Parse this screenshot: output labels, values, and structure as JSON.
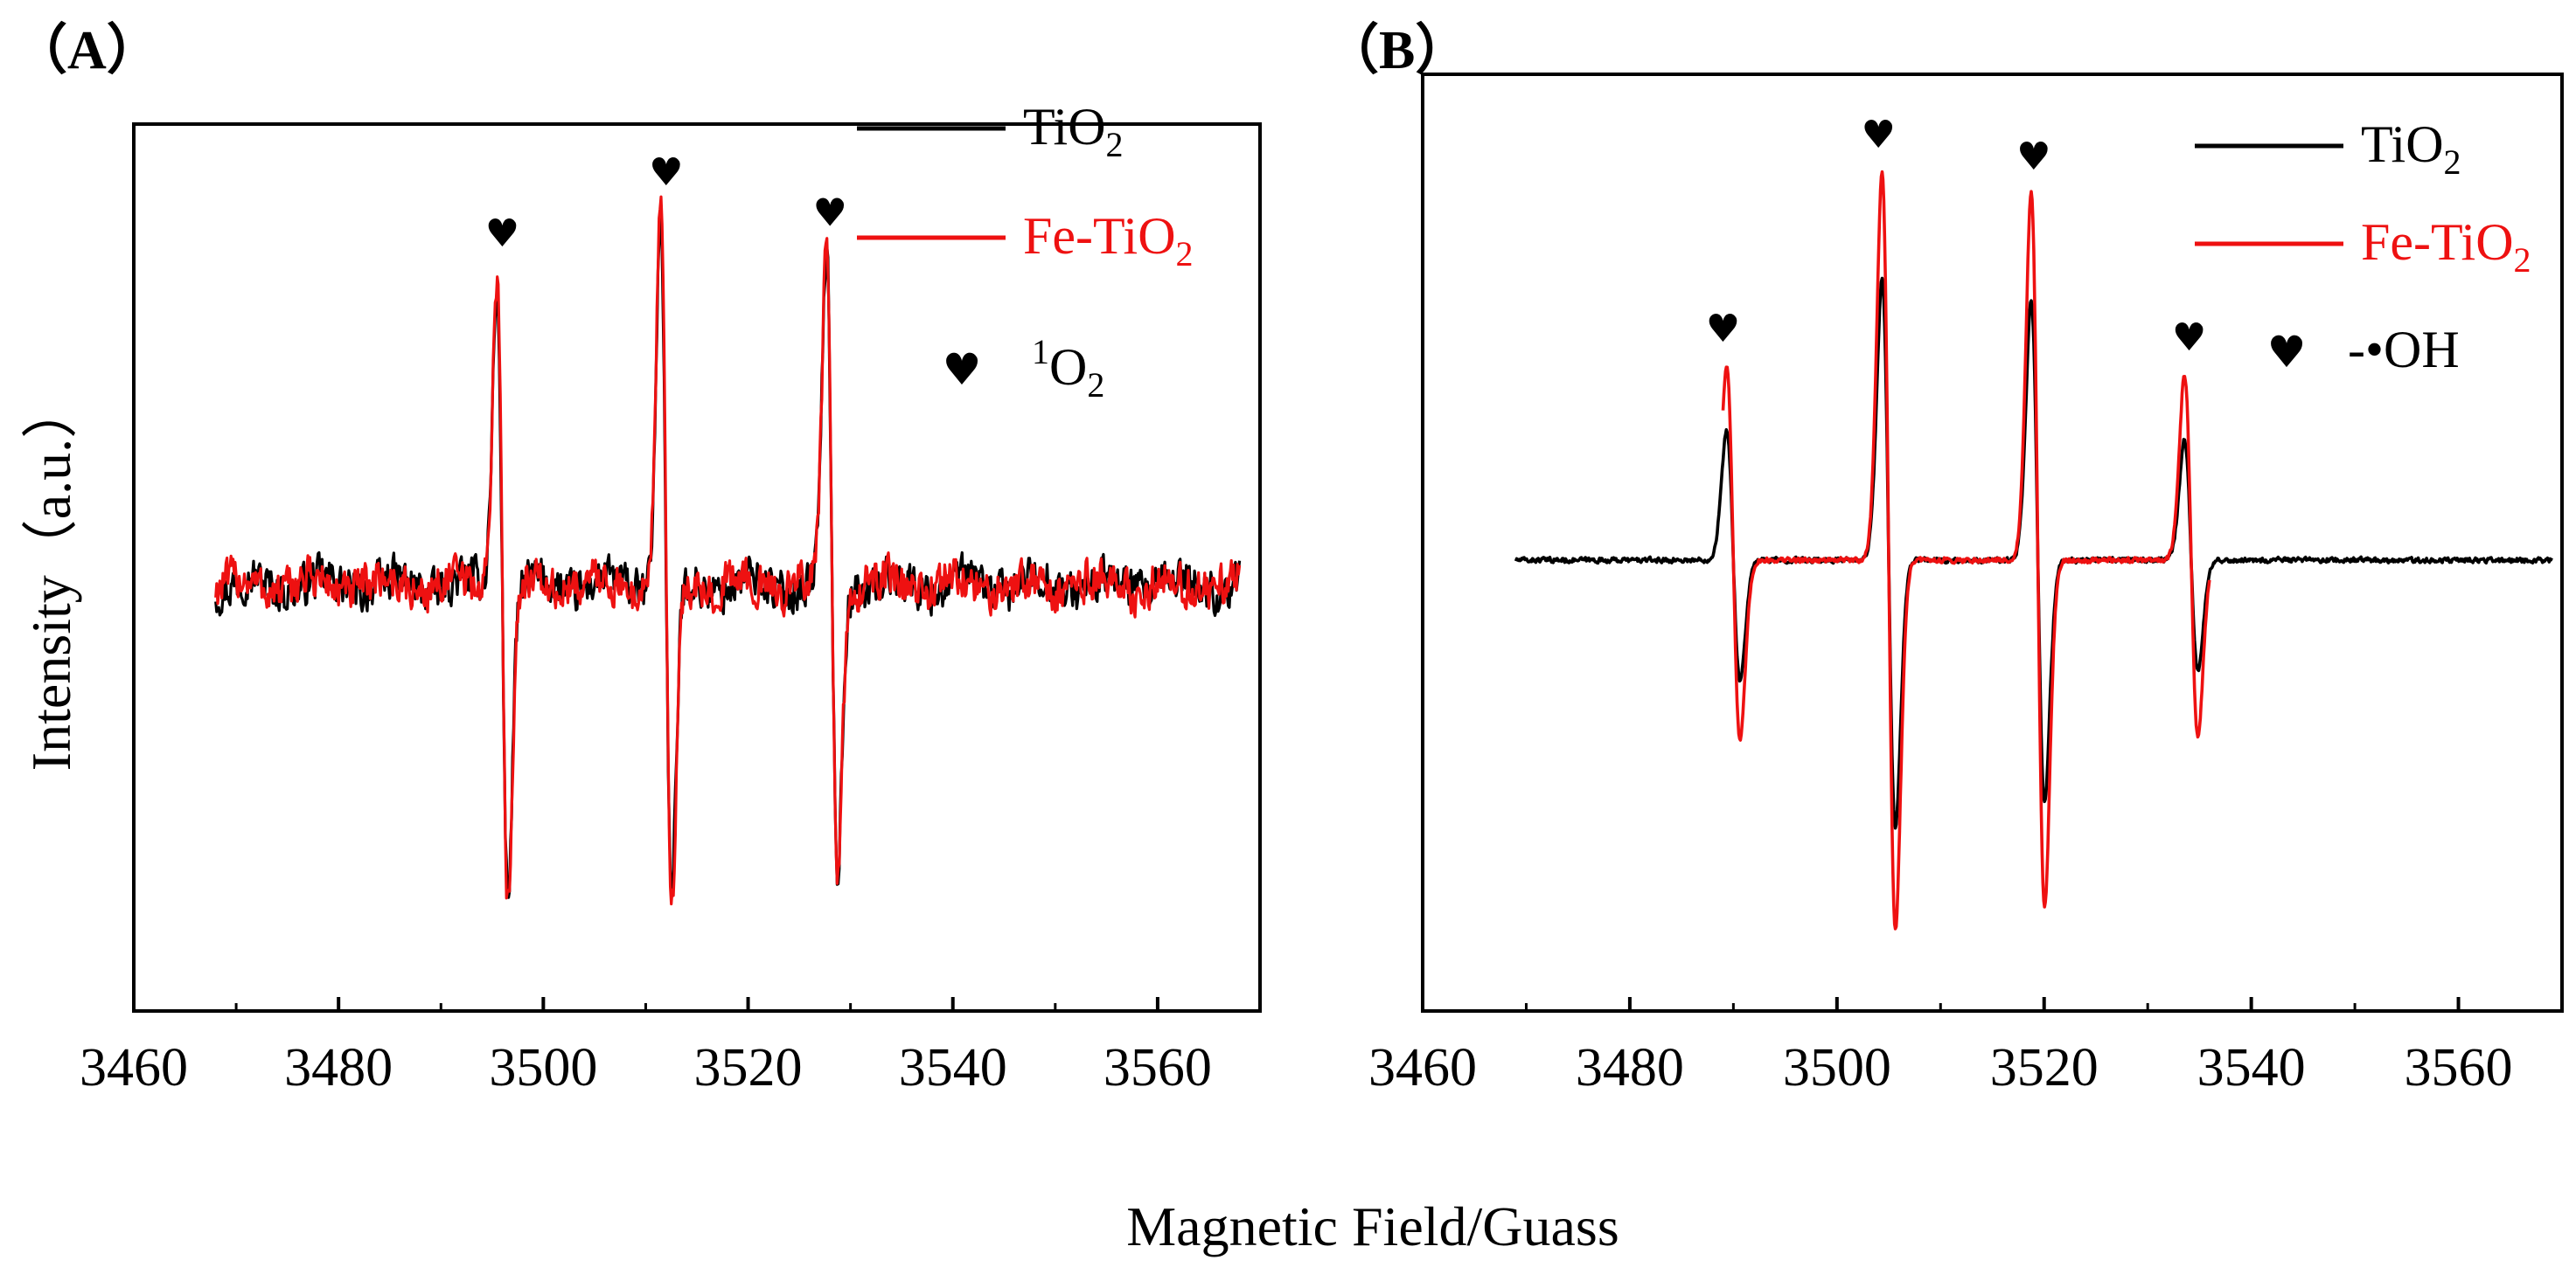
{
  "colors": {
    "tio2": "#000000",
    "fe_tio2": "#ee1111",
    "axis": "#000000"
  },
  "chart_data": [
    {
      "type": "line",
      "panel_label": "（A）",
      "xlabel": "Magnetic Field/Guass",
      "ylabel": "Intensity（a.u.）",
      "xlim": [
        3460,
        3570
      ],
      "xticks": [
        3460,
        3480,
        3500,
        3520,
        3540,
        3560
      ],
      "y_ticks_shown": false,
      "baseline": 0,
      "noise_amplitude": 0.07,
      "series": [
        {
          "name": "TiO",
          "subscript": "2",
          "color": "#000000",
          "x_range": [
            3468,
            3568
          ],
          "peaks": [
            {
              "center": 3496,
              "max": 0.73,
              "min": -0.75
            },
            {
              "center": 3512,
              "max": 0.9,
              "min": -0.78
            },
            {
              "center": 3528.2,
              "max": 0.8,
              "min": -0.7
            }
          ]
        },
        {
          "name": "Fe-TiO",
          "subscript": "2",
          "color": "#ee1111",
          "x_range": [
            3468,
            3568
          ],
          "peaks": [
            {
              "center": 3496,
              "max": 0.77,
              "min": -0.78
            },
            {
              "center": 3512,
              "max": 0.92,
              "min": -0.8
            },
            {
              "center": 3528.2,
              "max": 0.82,
              "min": -0.72
            }
          ]
        }
      ],
      "annotations": [
        {
          "symbol": "♥",
          "x": 3496
        },
        {
          "symbol": "♥",
          "x": 3512
        },
        {
          "symbol": "♥",
          "x": 3528
        }
      ],
      "legend": {
        "position": "top-right",
        "entries": [
          {
            "label": "TiO",
            "sub": "2",
            "sup": "",
            "color": "#000000"
          },
          {
            "label": "Fe-TiO",
            "sub": "2",
            "sup": "",
            "color": "#ee1111"
          }
        ],
        "marker_entry": {
          "symbol": "♥",
          "sup": "1",
          "text": "O",
          "sub": "2"
        }
      }
    },
    {
      "type": "line",
      "panel_label": "（B）",
      "xlabel": "Magnetic Field/Guass",
      "ylabel": "",
      "xlim": [
        3460,
        3570
      ],
      "xticks": [
        3460,
        3480,
        3500,
        3520,
        3540,
        3560
      ],
      "y_ticks_shown": false,
      "baseline": 0,
      "noise_amplitude": 0.008,
      "series": [
        {
          "name": "TiO",
          "subscript": "2",
          "color": "#000000",
          "x_range": [
            3469,
            3569
          ],
          "peaks": [
            {
              "center": 3490,
              "max": 0.3,
              "min": -0.28
            },
            {
              "center": 3505,
              "max": 0.65,
              "min": -0.62
            },
            {
              "center": 3519.4,
              "max": 0.6,
              "min": -0.56
            },
            {
              "center": 3534.2,
              "max": 0.28,
              "min": -0.26
            }
          ]
        },
        {
          "name": "Fe-TiO",
          "subscript": "2",
          "color": "#ee1111",
          "x_range": [
            3489,
            3536
          ],
          "peaks": [
            {
              "center": 3490,
              "max": 0.45,
              "min": -0.42
            },
            {
              "center": 3505,
              "max": 0.9,
              "min": -0.86
            },
            {
              "center": 3519.4,
              "max": 0.85,
              "min": -0.81
            },
            {
              "center": 3534.2,
              "max": 0.43,
              "min": -0.41
            }
          ]
        }
      ],
      "annotations": [
        {
          "symbol": "♥",
          "x": 3489
        },
        {
          "symbol": "♥",
          "x": 3504
        },
        {
          "symbol": "♥",
          "x": 3519
        },
        {
          "symbol": "♥",
          "x": 3534
        }
      ],
      "legend": {
        "position": "top-right",
        "entries": [
          {
            "label": "TiO",
            "sub": "2",
            "sup": "",
            "color": "#000000"
          },
          {
            "label": "Fe-TiO",
            "sub": "2",
            "sup": "",
            "color": "#ee1111"
          }
        ],
        "marker_entry": {
          "symbol": "♥",
          "sup": "",
          "text": "-•OH",
          "sub": ""
        }
      }
    }
  ]
}
